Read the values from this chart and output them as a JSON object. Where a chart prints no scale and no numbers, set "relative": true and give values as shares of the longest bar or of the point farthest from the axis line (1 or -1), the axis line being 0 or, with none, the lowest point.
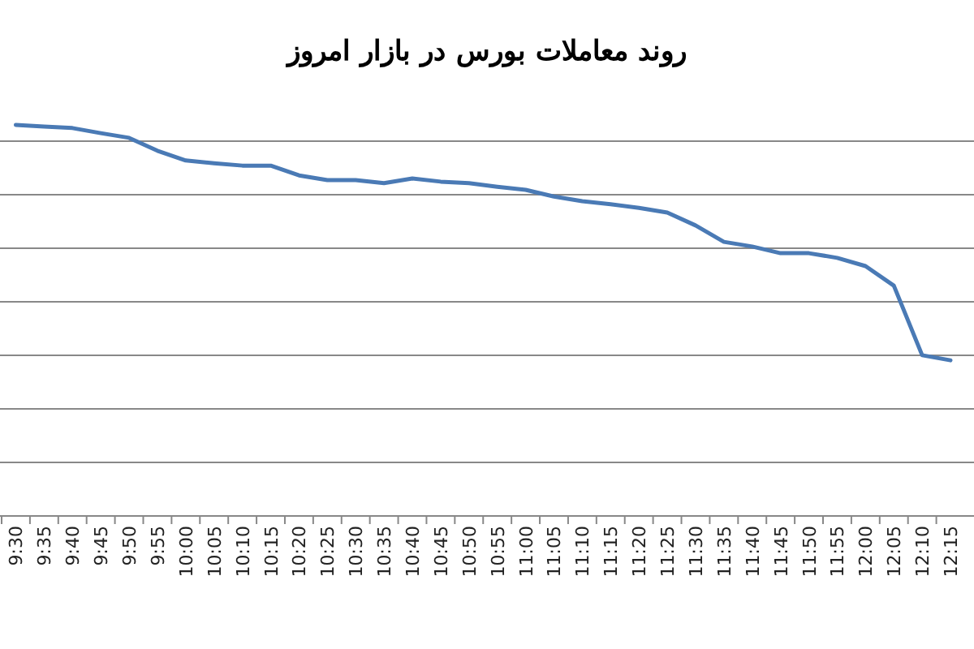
{
  "chart_data": {
    "type": "line",
    "title": "روند معاملات بورس در بازار امروز",
    "relative": true,
    "grid": "y",
    "marker": "none",
    "line_style": "solid",
    "categories": [
      "9:30",
      "9:35",
      "9:40",
      "9:45",
      "9:50",
      "9:55",
      "10:00",
      "10:05",
      "10:10",
      "10:15",
      "10:20",
      "10:25",
      "10:30",
      "10:35",
      "10:40",
      "10:45",
      "10:50",
      "10:55",
      "11:00",
      "11:05",
      "11:10",
      "11:15",
      "11:20",
      "11:25",
      "11:30",
      "11:35",
      "11:40",
      "11:45",
      "11:50",
      "11:55",
      "12:00",
      "12:05",
      "12:10",
      "12:15"
    ],
    "series": [
      {
        "color": "#4a7ab5",
        "values": [
          1.0,
          0.996,
          0.992,
          0.979,
          0.967,
          0.934,
          0.909,
          0.902,
          0.896,
          0.896,
          0.871,
          0.859,
          0.859,
          0.851,
          0.863,
          0.855,
          0.851,
          0.842,
          0.834,
          0.817,
          0.805,
          0.797,
          0.788,
          0.776,
          0.743,
          0.701,
          0.689,
          0.672,
          0.672,
          0.66,
          0.639,
          0.589,
          0.411,
          0.398
        ]
      }
    ]
  }
}
